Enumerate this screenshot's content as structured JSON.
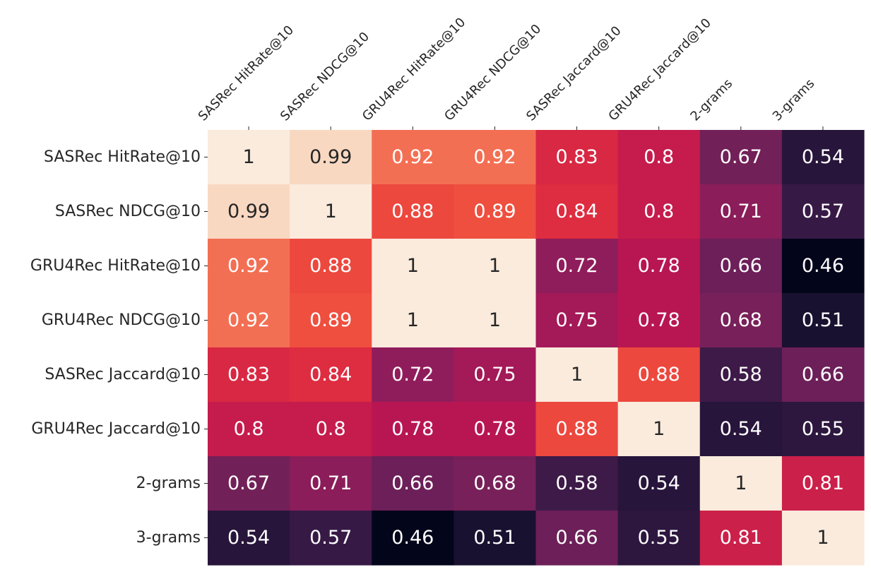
{
  "chart_data": {
    "type": "heatmap",
    "title": "",
    "xlabel": "",
    "ylabel": "",
    "row_labels": [
      "SASRec HitRate@10",
      "SASRec NDCG@10",
      "GRU4Rec HitRate@10",
      "GRU4Rec NDCG@10",
      "SASRec Jaccard@10",
      "GRU4Rec Jaccard@10",
      "2-grams",
      "3-grams"
    ],
    "col_labels": [
      "SASRec HitRate@10",
      "SASRec NDCG@10",
      "GRU4Rec HitRate@10",
      "GRU4Rec NDCG@10",
      "SASRec Jaccard@10",
      "GRU4Rec Jaccard@10",
      "2-grams",
      "3-grams"
    ],
    "values": [
      [
        1,
        0.99,
        0.92,
        0.92,
        0.83,
        0.8,
        0.67,
        0.54
      ],
      [
        0.99,
        1,
        0.88,
        0.89,
        0.84,
        0.8,
        0.71,
        0.57
      ],
      [
        0.92,
        0.88,
        1,
        1,
        0.72,
        0.78,
        0.66,
        0.46
      ],
      [
        0.92,
        0.89,
        1,
        1,
        0.75,
        0.78,
        0.68,
        0.51
      ],
      [
        0.83,
        0.84,
        0.72,
        0.75,
        1,
        0.88,
        0.58,
        0.66
      ],
      [
        0.8,
        0.8,
        0.78,
        0.78,
        0.88,
        1,
        0.54,
        0.55
      ],
      [
        0.67,
        0.71,
        0.66,
        0.68,
        0.58,
        0.54,
        1,
        0.81
      ],
      [
        0.54,
        0.57,
        0.46,
        0.51,
        0.66,
        0.55,
        0.81,
        1
      ]
    ],
    "value_range": [
      0.46,
      1
    ],
    "colormap": "rocket",
    "annotations": true,
    "colorbar": false,
    "x_tick_position": "top",
    "colors": {
      "text_dark": "#262626",
      "text_light": "#ffffff",
      "background": "#ffffff"
    }
  }
}
